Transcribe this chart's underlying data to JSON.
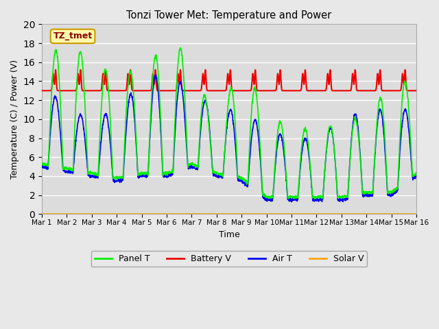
{
  "title": "Tonzi Tower Met: Temperature and Power",
  "xlabel": "Time",
  "ylabel": "Temperature (C) / Power (V)",
  "ylim": [
    0,
    20
  ],
  "xlim": [
    0,
    15
  ],
  "xtick_labels": [
    "Mar 1",
    "Mar 2",
    "Mar 3",
    "Mar 4",
    "Mar 5",
    "Mar 6",
    "Mar 7",
    "Mar 8",
    "Mar 9",
    "Mar 10",
    "Mar 11",
    "Mar 12",
    "Mar 13",
    "Mar 14",
    "Mar 15",
    "Mar 16"
  ],
  "xtick_positions": [
    0,
    1,
    2,
    3,
    4,
    5,
    6,
    7,
    8,
    9,
    10,
    11,
    12,
    13,
    14,
    15
  ],
  "colors": {
    "panel_t": "#00EE00",
    "battery_v": "#EE0000",
    "air_t": "#0000EE",
    "solar_v": "#FFA500"
  },
  "legend_labels": [
    "Panel T",
    "Battery V",
    "Air T",
    "Solar V"
  ],
  "tz_label": "TZ_tmet",
  "bg_color": "#DCDCDC",
  "fig_bg_color": "#E8E8E8"
}
